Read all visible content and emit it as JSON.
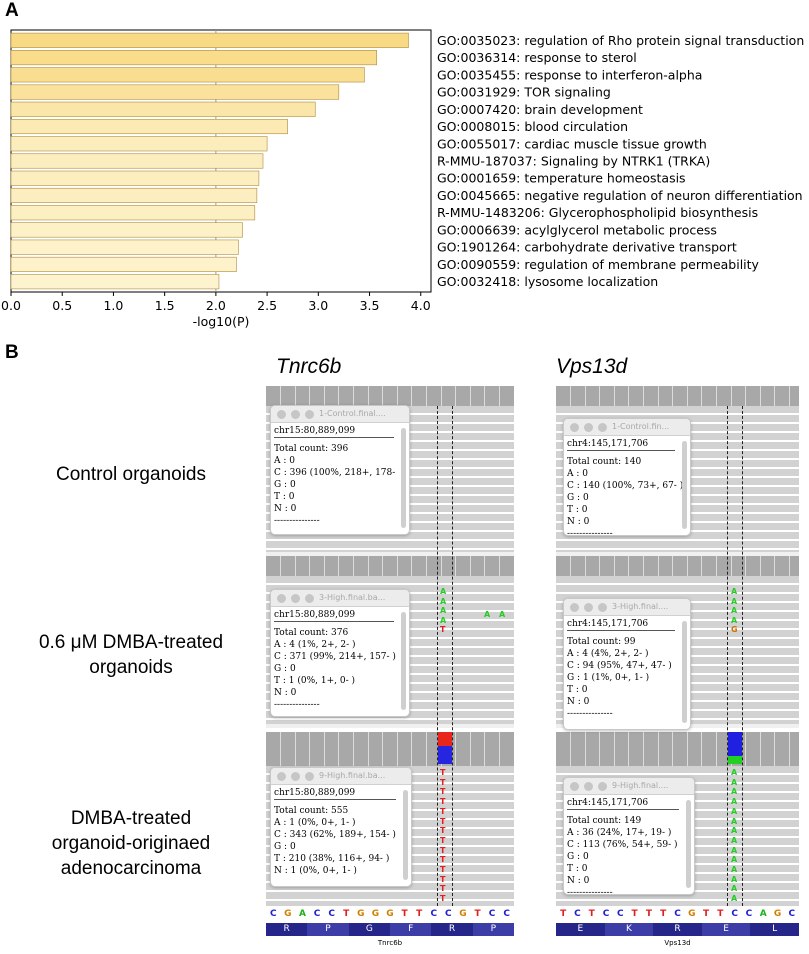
{
  "panel_a": {
    "label": "A",
    "chart_data": {
      "type": "bar",
      "orientation": "horizontal",
      "xlabel": "-log10(P)",
      "xlim": [
        0,
        4.1
      ],
      "xticks": [
        "0.0",
        "0.5",
        "1.0",
        "1.5",
        "2.0",
        "2.5",
        "3.0",
        "3.5",
        "4.0"
      ],
      "reference_line": 2.0,
      "categories": [
        "GO:0035023: regulation of Rho protein signal transduction",
        "GO:0036314: response to sterol",
        "GO:0035455: response to interferon-alpha",
        "GO:0031929: TOR signaling",
        "GO:0007420: brain development",
        "GO:0008015: blood circulation",
        "GO:0055017: cardiac muscle tissue growth",
        "R-MMU-187037: Signaling by NTRK1 (TRKA)",
        "GO:0001659: temperature homeostasis",
        "GO:0045665: negative regulation of neuron differentiation",
        "R-MMU-1483206: Glycerophospholipid biosynthesis",
        "GO:0006639: acylglycerol metabolic process",
        "GO:1901264: carbohydrate derivative transport",
        "GO:0090559: regulation of membrane permeability",
        "GO:0032418: lysosome localization"
      ],
      "values": [
        3.88,
        3.57,
        3.45,
        3.2,
        2.97,
        2.7,
        2.5,
        2.46,
        2.42,
        2.4,
        2.38,
        2.26,
        2.22,
        2.2,
        2.03
      ],
      "colors": [
        "#f8d984",
        "#f9dc8c",
        "#f9de92",
        "#fae29c",
        "#fbe6aa",
        "#fceab4",
        "#fcedbd",
        "#fcedbe",
        "#fceebf",
        "#fceec0",
        "#fcefc1",
        "#fdf1c7",
        "#fdf2c9",
        "#fdf2ca",
        "#fdf4cf"
      ]
    }
  },
  "panel_b": {
    "label": "B",
    "genes": [
      {
        "name": "Tnrc6b"
      },
      {
        "name": "Vps13d"
      }
    ],
    "rows": [
      {
        "label_lines": [
          "Control organoids"
        ]
      },
      {
        "label_lines": [
          "0.6 μM DMBA-treated",
          "organoids"
        ]
      },
      {
        "label_lines": [
          "DMBA-treated",
          "organoid-originaed",
          "adenocarcinoma"
        ]
      }
    ],
    "popups": [
      {
        "title": "1-Control.final....",
        "locus": "chr15:80,889,099",
        "lines": [
          "Total count: 396",
          "A : 0",
          "C : 396 (100%, 218+, 178-",
          "G : 0",
          "T : 0",
          "N : 0",
          "---------------"
        ]
      },
      {
        "title": "1-Control.fin...",
        "locus": "chr4:145,171,706",
        "lines": [
          "Total count: 140",
          "A : 0",
          "C : 140 (100%, 73+, 67- )",
          "G : 0",
          "T : 0",
          "N : 0",
          "---------------"
        ]
      },
      {
        "title": "3-High.final.ba...",
        "locus": "chr15:80,889,099",
        "lines": [
          "Total count: 376",
          "A : 4 (1%, 2+, 2- )",
          "C : 371 (99%, 214+, 157- )",
          "G : 0",
          "T : 1 (0%, 1+, 0- )",
          "N : 0",
          "---------------"
        ]
      },
      {
        "title": "3-High.final....",
        "locus": "chr4:145,171,706",
        "lines": [
          "Total count: 99",
          "A : 4 (4%, 2+, 2- )",
          "C : 94 (95%, 47+, 47- )",
          "G : 1 (1%, 0+, 1- )",
          "T : 0",
          "N : 0",
          "---------------"
        ]
      },
      {
        "title": "9-High.final.ba...",
        "locus": "chr15:80,889,099",
        "lines": [
          "Total count: 555",
          "A : 1 (0%, 0+, 1- )",
          "C : 343 (62%, 189+, 154- )",
          "G : 0",
          "T : 210 (38%, 116+, 94- )",
          "N : 1 (0%, 0+, 1- )",
          "---------------"
        ]
      },
      {
        "title": "9-High.final....",
        "locus": "chr4:145,171,706",
        "lines": [
          "Total count: 149",
          "A : 36 (24%, 17+, 19- )",
          "C : 113 (76%, 54+, 59- )",
          "G : 0",
          "T : 0",
          "N : 0",
          "---------------"
        ]
      }
    ],
    "sequence": {
      "left_bases": [
        "C",
        "G",
        "A",
        "C",
        "C",
        "T",
        "G",
        "G",
        "G",
        "T",
        "T",
        "C",
        "C",
        "G",
        "T",
        "C",
        "C"
      ],
      "right_bases": [
        "T",
        "C",
        "T",
        "C",
        "C",
        "T",
        "T",
        "T",
        "C",
        "G",
        "T",
        "T",
        "C",
        "C",
        "A",
        "G",
        "C"
      ],
      "left_aa": [
        "R",
        "P",
        "G",
        "F",
        "R",
        "P"
      ],
      "right_aa": [
        "E",
        "K",
        "R",
        "E",
        "L"
      ],
      "left_gene_label": "Tnrc6b",
      "right_gene_label": "Vps13d",
      "base_colors": {
        "A": "#1ab21a",
        "C": "#2020d0",
        "G": "#d08000",
        "T": "#e02020"
      }
    },
    "variant_letters": {
      "A": "A",
      "T": "T",
      "G": "G",
      "colors": {
        "A": "#22cc22",
        "T": "#e02020",
        "G": "#d07000"
      }
    }
  }
}
